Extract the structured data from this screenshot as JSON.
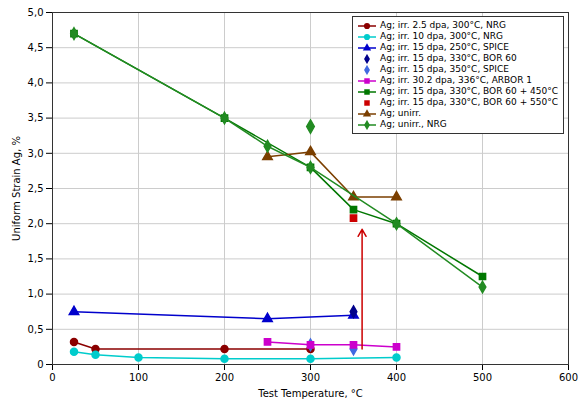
{
  "chart_data": {
    "type": "line",
    "xlabel": "Test Temperature, °C",
    "ylabel": "Uniform Strain Ag, %",
    "xlim": [
      0,
      600
    ],
    "ylim": [
      0,
      5.0
    ],
    "xticks": [
      0,
      100,
      200,
      300,
      400,
      500,
      600
    ],
    "yticks": [
      0,
      {
        "value": 0.5,
        "label": "0,5"
      },
      {
        "value": 1.0,
        "label": "1,0"
      },
      {
        "value": 1.5,
        "label": "1,5"
      },
      {
        "value": 2.0,
        "label": "2,0"
      },
      {
        "value": 2.5,
        "label": "2,5"
      },
      {
        "value": 3.0,
        "label": "3,0"
      },
      {
        "value": 3.5,
        "label": "3,5"
      },
      {
        "value": 4.0,
        "label": "4,0"
      },
      {
        "value": 4.5,
        "label": "4,5"
      },
      {
        "value": 5.0,
        "label": "5,0"
      }
    ],
    "grid": true,
    "legend": "upper right",
    "series": [
      {
        "name": "Ag; irr. 2.5 dpa, 300°C, NRG",
        "color": "#8B0000",
        "marker": "circle",
        "line_style": "solid",
        "x": [
          25,
          50,
          200,
          300
        ],
        "values": [
          0.32,
          0.22,
          0.22,
          0.22
        ]
      },
      {
        "name": "Ag; irr. 10 dpa, 300°C, NRG",
        "color": "#00CCCC",
        "marker": "circle",
        "line_style": "solid",
        "x": [
          25,
          50,
          100,
          200,
          300,
          400
        ],
        "values": [
          0.18,
          0.14,
          0.1,
          0.08,
          0.08,
          0.1
        ]
      },
      {
        "name": "Ag; irr. 15 dpa, 250°C, SPICE",
        "color": "#0000CC",
        "marker": "triangle",
        "line_style": "solid",
        "x": [
          25,
          250,
          350
        ],
        "values": [
          0.75,
          0.65,
          0.7
        ]
      },
      {
        "name": "Ag; irr. 15 dpa, 330°C, BOR 60",
        "color": "#00008B",
        "marker": "diamond",
        "line_style": "none",
        "x": [
          350
        ],
        "values": [
          0.75
        ]
      },
      {
        "name": "Ag; irr. 15 dpa, 350°C, SPICE",
        "color": "#4169E1",
        "marker": "diamond",
        "line_style": "none",
        "x": [
          300,
          350
        ],
        "values": [
          0.28,
          0.22
        ]
      },
      {
        "name": "Ag; irr. 30.2 dpa, 336°C, ARBOR 1",
        "color": "#CC00CC",
        "marker": "square",
        "line_style": "solid",
        "x": [
          250,
          300,
          350,
          400
        ],
        "values": [
          0.32,
          0.28,
          0.28,
          0.25
        ]
      },
      {
        "name": "Ag; irr. 15 dpa, 330°C, BOR 60 + 450°C",
        "color": "#007700",
        "marker": "square",
        "line_style": "solid",
        "x": [
          25,
          200,
          300,
          350,
          400,
          500
        ],
        "values": [
          4.7,
          3.5,
          2.8,
          2.2,
          2.0,
          1.25
        ]
      },
      {
        "name": "Ag; irr. 15 dpa, 330°C, BOR 60 + 550°C",
        "color": "#CC0000",
        "marker": "square",
        "line_style": "none",
        "x": [
          350
        ],
        "values": [
          2.08
        ]
      },
      {
        "name": "Ag; unirr.",
        "color": "#7B3F00",
        "marker": "triangle",
        "line_style": "solid",
        "x": [
          250,
          300,
          350,
          400
        ],
        "values": [
          2.95,
          3.02,
          2.38,
          2.38
        ]
      },
      {
        "name": "Ag; unirr., NRG",
        "color": "#228B22",
        "marker": "diamond",
        "line_style": "solid",
        "x": [
          25,
          200,
          250,
          300,
          400,
          500
        ],
        "values": [
          4.7,
          3.5,
          3.1,
          2.8,
          2.0,
          1.1
        ]
      }
    ],
    "points": [
      {
        "x": 300,
        "y": 3.38,
        "color": "#228B22",
        "marker": "diamond"
      }
    ],
    "annotations": [
      {
        "type": "arrow",
        "x": 360,
        "y_start": 0.22,
        "y_end": 1.92,
        "color": "#CC0000"
      }
    ]
  }
}
